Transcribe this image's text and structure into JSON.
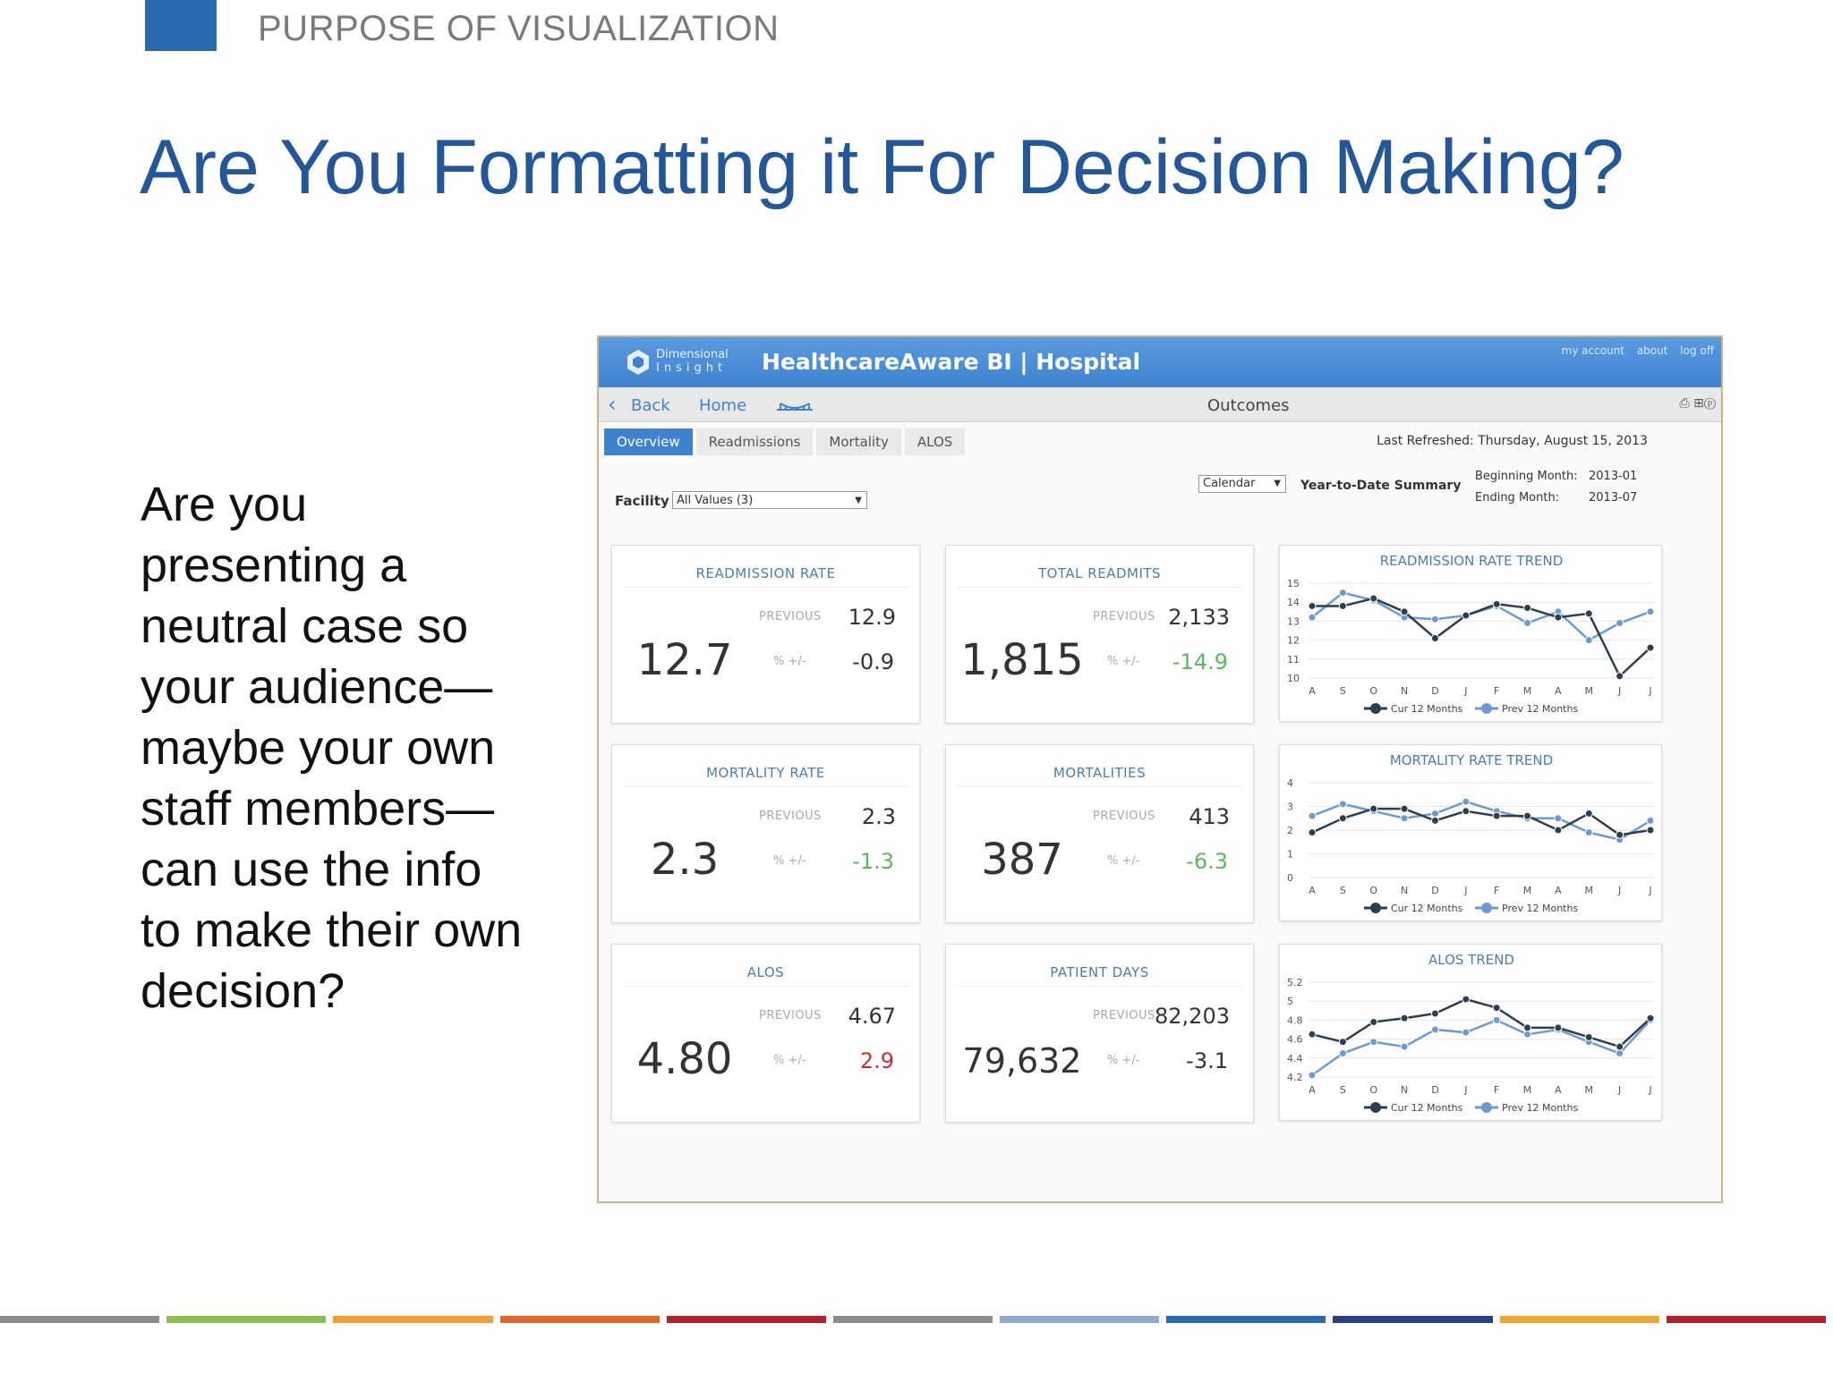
{
  "slide": {
    "section": "PURPOSE OF VISUALIZATION",
    "title": "Are You Formatting it For Decision Making?",
    "body": "Are you presenting a neutral case so your audience—maybe your own staff members—can use the info to make their own decision?",
    "stripe_colors": [
      "#8c8c8c",
      "#8cc152",
      "#f39c33",
      "#e0672a",
      "#b5202e",
      "#8c8c8c",
      "#8fa8d4",
      "#2a6ab0",
      "#2b3f8c",
      "#f3a533",
      "#b5202e"
    ]
  },
  "app": {
    "logo_line1": "Dimensional",
    "logo_line2": "Insight",
    "title": "HealthcareAware BI | Hospital",
    "links": [
      "my account",
      "about",
      "log off"
    ],
    "nav": {
      "back": "Back",
      "home": "Home",
      "page": "Outcomes",
      "tools": "⎙ ⊞ⓟ"
    },
    "tabs": [
      "Overview",
      "Readmissions",
      "Mortality",
      "ALOS"
    ],
    "active_tab": "Overview",
    "last_refreshed": "Last Refreshed: Thursday, August 15, 2013",
    "filters": {
      "facility_label": "Facility",
      "facility_value": "All Values (3)",
      "calendar_value": "Calendar",
      "summary_label": "Year-to-Date Summary",
      "beginning_label": "Beginning Month:",
      "beginning_value": "2013-01",
      "ending_label": "Ending Month:",
      "ending_value": "2013-07"
    },
    "kpis": [
      {
        "title": "READMISSION RATE",
        "value": "12.7",
        "prev_label": "PREVIOUS",
        "prev": "12.9",
        "pct_label": "% +/-",
        "pct": "-0.9",
        "pct_color": "#333333"
      },
      {
        "title": "TOTAL READMITS",
        "value": "1,815",
        "prev_label": "PREVIOUS",
        "prev": "2,133",
        "pct_label": "% +/-",
        "pct": "-14.9",
        "pct_color": "#5cb85c"
      },
      {
        "title": "MORTALITY RATE",
        "value": "2.3",
        "prev_label": "PREVIOUS",
        "prev": "2.3",
        "pct_label": "% +/-",
        "pct": "-1.3",
        "pct_color": "#5cb85c"
      },
      {
        "title": "MORTALITIES",
        "value": "387",
        "prev_label": "PREVIOUS",
        "prev": "413",
        "pct_label": "% +/-",
        "pct": "-6.3",
        "pct_color": "#5cb85c"
      },
      {
        "title": "ALOS",
        "value": "4.80",
        "prev_label": "PREVIOUS",
        "prev": "4.67",
        "pct_label": "% +/-",
        "pct": "2.9",
        "pct_color": "#c9302c"
      },
      {
        "title": "PATIENT DAYS",
        "value": "79,632",
        "prev_label": "PREVIOUS",
        "prev": "82,203",
        "pct_label": "% +/-",
        "pct": "-3.1",
        "pct_color": "#333333"
      }
    ]
  },
  "chart_data": [
    {
      "type": "line",
      "title": "READMISSION RATE TREND",
      "categories": [
        "A",
        "S",
        "O",
        "N",
        "D",
        "J",
        "F",
        "M",
        "A",
        "M",
        "J",
        "J"
      ],
      "yticks": [
        10,
        11,
        12,
        13,
        14,
        15
      ],
      "ylim": [
        10,
        15
      ],
      "series": [
        {
          "name": "Cur 12 Months",
          "color": "#2c3e50",
          "values": [
            13.8,
            13.8,
            14.2,
            13.5,
            12.1,
            13.3,
            13.9,
            13.7,
            13.2,
            13.4,
            10.1,
            11.6
          ]
        },
        {
          "name": "Prev 12 Months",
          "color": "#6c9bd2",
          "values": [
            13.2,
            14.5,
            14.1,
            13.2,
            13.1,
            13.3,
            13.8,
            12.9,
            13.5,
            12.0,
            12.9,
            13.5
          ]
        }
      ],
      "legend": "bottom"
    },
    {
      "type": "line",
      "title": "MORTALITY RATE TREND",
      "categories": [
        "A",
        "S",
        "O",
        "N",
        "D",
        "J",
        "F",
        "M",
        "A",
        "M",
        "J",
        "J"
      ],
      "yticks": [
        0,
        1,
        2,
        3,
        4
      ],
      "ylim": [
        0,
        4
      ],
      "series": [
        {
          "name": "Cur 12 Months",
          "color": "#2c3e50",
          "values": [
            1.9,
            2.5,
            2.9,
            2.9,
            2.4,
            2.8,
            2.6,
            2.6,
            2.0,
            2.7,
            1.8,
            2.0
          ]
        },
        {
          "name": "Prev 12 Months",
          "color": "#6c9bd2",
          "values": [
            2.6,
            3.1,
            2.8,
            2.5,
            2.7,
            3.2,
            2.8,
            2.5,
            2.5,
            1.9,
            1.6,
            2.4
          ]
        }
      ],
      "legend": "bottom"
    },
    {
      "type": "line",
      "title": "ALOS TREND",
      "categories": [
        "A",
        "S",
        "O",
        "N",
        "D",
        "J",
        "F",
        "M",
        "A",
        "M",
        "J",
        "J"
      ],
      "yticks": [
        4.2,
        4.4,
        4.6,
        4.8,
        5.0,
        5.2
      ],
      "ylim": [
        4.2,
        5.2
      ],
      "series": [
        {
          "name": "Cur 12 Months",
          "color": "#2c3e50",
          "values": [
            4.65,
            4.57,
            4.78,
            4.82,
            4.87,
            5.02,
            4.93,
            4.72,
            4.72,
            4.62,
            4.52,
            4.82
          ]
        },
        {
          "name": "Prev 12 Months",
          "color": "#6c9bd2",
          "values": [
            4.22,
            4.45,
            4.57,
            4.52,
            4.7,
            4.67,
            4.8,
            4.65,
            4.7,
            4.57,
            4.45,
            4.8
          ]
        }
      ],
      "legend": "bottom"
    }
  ]
}
